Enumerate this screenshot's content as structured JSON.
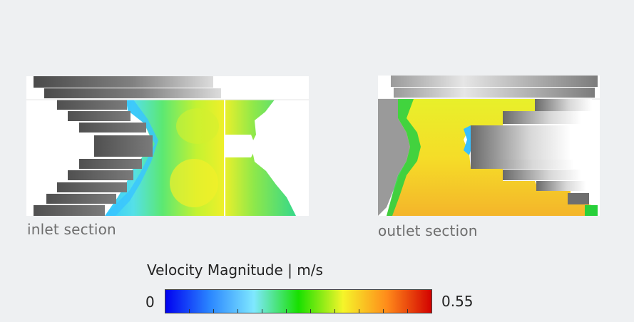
{
  "panels": {
    "inlet": {
      "caption": "inlet section"
    },
    "outlet": {
      "caption": "outlet section"
    }
  },
  "legend": {
    "title": "Velocity Magnitude | m/s",
    "min_label": "0",
    "max_label": "0.55",
    "min_value": 0,
    "max_value": 0.55,
    "colormap": [
      "#0000f0",
      "#2a86ff",
      "#7fe8ff",
      "#18e000",
      "#f5f52a",
      "#ff8a1a",
      "#d20000"
    ]
  }
}
